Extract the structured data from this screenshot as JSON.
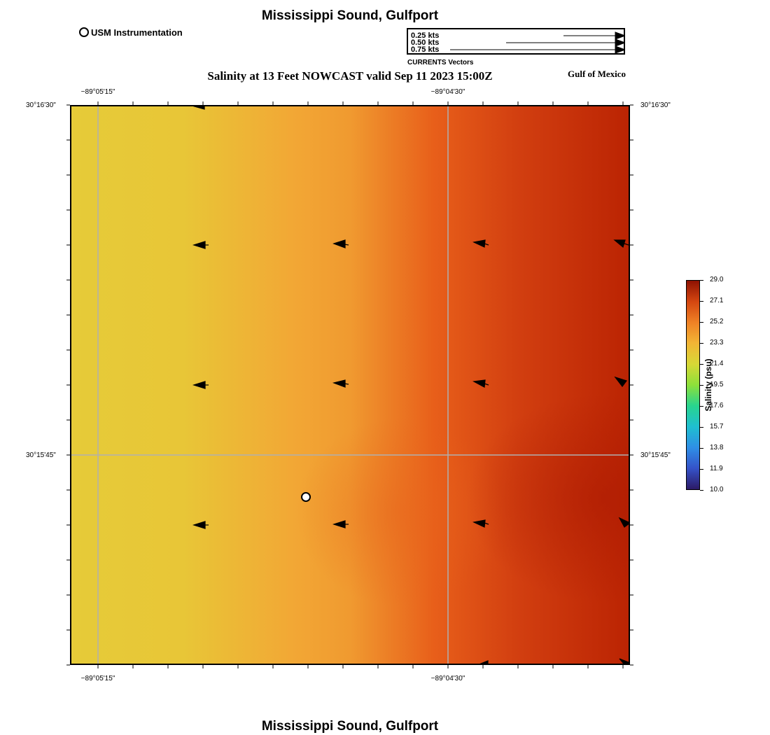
{
  "header": {
    "title": "Mississippi Sound, Gulfport",
    "subtitle": "Salinity at 13 Feet NOWCAST valid Sep 11 2023 15:00Z",
    "region_label": "Gulf of Mexico"
  },
  "footer": {
    "title": "Mississippi Sound, Gulfport"
  },
  "legend": {
    "usm_label": "USM Instrumentation",
    "vectors_caption": "CURRENTS Vectors",
    "vector_keys": [
      "0.25 kts",
      "0.50 kts",
      "0.75 kts"
    ]
  },
  "axes": {
    "lon_labels": [
      "−89°05'15\"",
      "−89°04'30\""
    ],
    "lat_labels": [
      "30°16'30\"",
      "30°15'45\""
    ]
  },
  "colorbar": {
    "label": "Salinity (psu)",
    "ticks": [
      "29.0",
      "27.1",
      "25.2",
      "23.3",
      "21.4",
      "19.5",
      "17.6",
      "15.7",
      "13.8",
      "11.9",
      "10.0"
    ],
    "range": [
      10.0,
      29.0
    ]
  },
  "map": {
    "colors": {
      "west": "#e6cb38",
      "mid": "#f09a30",
      "east": "#bb2403",
      "gridline": "#b0b0b0"
    },
    "station": {
      "name": "USM Instrumentation",
      "lon_fraction_note": "marker"
    }
  }
}
